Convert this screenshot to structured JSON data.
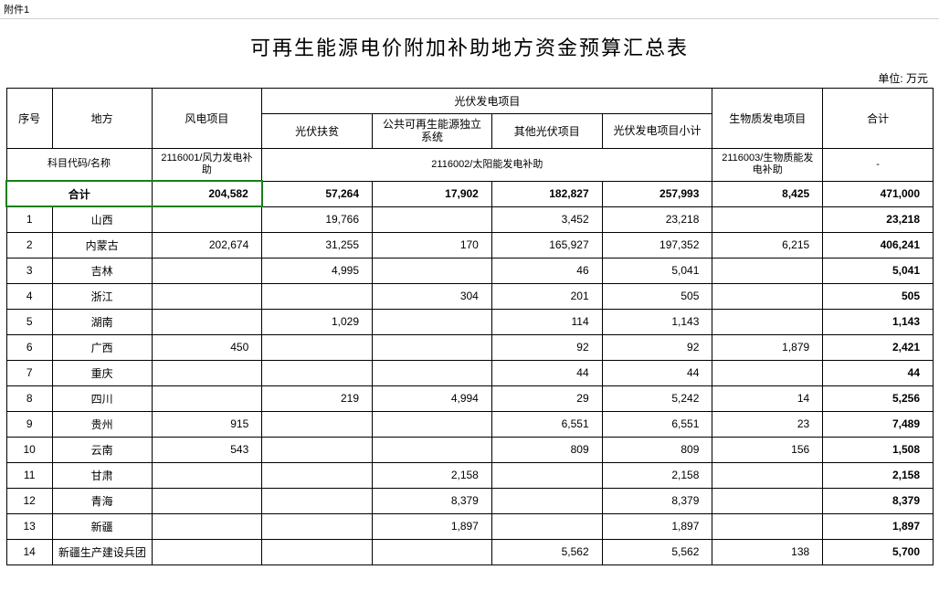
{
  "sheet_tab": "附件1",
  "title": "可再生能源电价附加补助地方资金预算汇总表",
  "unit_label": "单位: 万元",
  "headers": {
    "seq": "序号",
    "region": "地方",
    "wind": "风电项目",
    "pv_group": "光伏发电项目",
    "pv_poverty": "光伏扶贫",
    "pv_public": "公共可再生能源独立系统",
    "pv_other": "其他光伏项目",
    "pv_subtotal": "光伏发电项目小计",
    "biomass": "生物质发电项目",
    "total": "合计"
  },
  "subject_row": {
    "label": "科目代码/名称",
    "wind_code": "2116001/风力发电补助",
    "pv_code": "2116002/太阳能发电补助",
    "bio_code": "2116003/生物质能发电补助",
    "total_code": "-"
  },
  "totals": {
    "label": "合计",
    "wind": "204,582",
    "pv_poverty": "57,264",
    "pv_public": "17,902",
    "pv_other": "182,827",
    "pv_subtotal": "257,993",
    "biomass": "8,425",
    "total": "471,000"
  },
  "rows": [
    {
      "seq": "1",
      "region": "山西",
      "wind": "",
      "pv_poverty": "19,766",
      "pv_public": "",
      "pv_other": "3,452",
      "pv_subtotal": "23,218",
      "biomass": "",
      "total": "23,218"
    },
    {
      "seq": "2",
      "region": "内蒙古",
      "wind": "202,674",
      "pv_poverty": "31,255",
      "pv_public": "170",
      "pv_other": "165,927",
      "pv_subtotal": "197,352",
      "biomass": "6,215",
      "total": "406,241"
    },
    {
      "seq": "3",
      "region": "吉林",
      "wind": "",
      "pv_poverty": "4,995",
      "pv_public": "",
      "pv_other": "46",
      "pv_subtotal": "5,041",
      "biomass": "",
      "total": "5,041"
    },
    {
      "seq": "4",
      "region": "浙江",
      "wind": "",
      "pv_poverty": "",
      "pv_public": "304",
      "pv_other": "201",
      "pv_subtotal": "505",
      "biomass": "",
      "total": "505"
    },
    {
      "seq": "5",
      "region": "湖南",
      "wind": "",
      "pv_poverty": "1,029",
      "pv_public": "",
      "pv_other": "114",
      "pv_subtotal": "1,143",
      "biomass": "",
      "total": "1,143"
    },
    {
      "seq": "6",
      "region": "广西",
      "wind": "450",
      "pv_poverty": "",
      "pv_public": "",
      "pv_other": "92",
      "pv_subtotal": "92",
      "biomass": "1,879",
      "total": "2,421"
    },
    {
      "seq": "7",
      "region": "重庆",
      "wind": "",
      "pv_poverty": "",
      "pv_public": "",
      "pv_other": "44",
      "pv_subtotal": "44",
      "biomass": "",
      "total": "44"
    },
    {
      "seq": "8",
      "region": "四川",
      "wind": "",
      "pv_poverty": "219",
      "pv_public": "4,994",
      "pv_other": "29",
      "pv_subtotal": "5,242",
      "biomass": "14",
      "total": "5,256"
    },
    {
      "seq": "9",
      "region": "贵州",
      "wind": "915",
      "pv_poverty": "",
      "pv_public": "",
      "pv_other": "6,551",
      "pv_subtotal": "6,551",
      "biomass": "23",
      "total": "7,489"
    },
    {
      "seq": "10",
      "region": "云南",
      "wind": "543",
      "pv_poverty": "",
      "pv_public": "",
      "pv_other": "809",
      "pv_subtotal": "809",
      "biomass": "156",
      "total": "1,508"
    },
    {
      "seq": "11",
      "region": "甘肃",
      "wind": "",
      "pv_poverty": "",
      "pv_public": "2,158",
      "pv_other": "",
      "pv_subtotal": "2,158",
      "biomass": "",
      "total": "2,158"
    },
    {
      "seq": "12",
      "region": "青海",
      "wind": "",
      "pv_poverty": "",
      "pv_public": "8,379",
      "pv_other": "",
      "pv_subtotal": "8,379",
      "biomass": "",
      "total": "8,379"
    },
    {
      "seq": "13",
      "region": "新疆",
      "wind": "",
      "pv_poverty": "",
      "pv_public": "1,897",
      "pv_other": "",
      "pv_subtotal": "1,897",
      "biomass": "",
      "total": "1,897"
    },
    {
      "seq": "14",
      "region": "新疆生产建设兵团",
      "wind": "",
      "pv_poverty": "",
      "pv_public": "",
      "pv_other": "5,562",
      "pv_subtotal": "5,562",
      "biomass": "138",
      "total": "5,700"
    }
  ]
}
